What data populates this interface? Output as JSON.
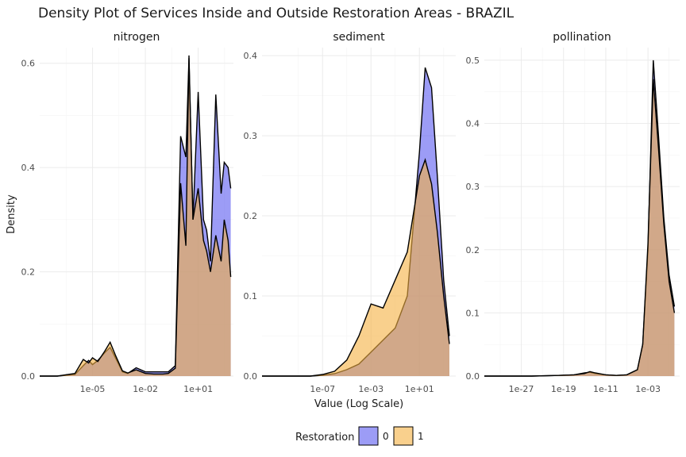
{
  "chart_data": {
    "type": "area",
    "title": "Density Plot of Services Inside and Outside Restoration Areas - BRAZIL",
    "xlabel": "Value (Log Scale)",
    "ylabel": "Density",
    "x_scale": "log10",
    "legend": {
      "title": "Restoration",
      "position": "bottom",
      "items": [
        {
          "label": "0",
          "color": "#5a5af0"
        },
        {
          "label": "1",
          "color": "#f5b041"
        }
      ]
    },
    "series_colors": {
      "0": "#5a5af0",
      "1": "#f5b041",
      "outline": "#000000"
    },
    "panels": [
      {
        "name": "nitrogen",
        "xlim": [
          "1e-08",
          "1e+03"
        ],
        "ylim": [
          0,
          0.63
        ],
        "x_ticks": [
          "1e-05",
          "1e-02",
          "1e+01"
        ],
        "y_ticks": [
          "0.0",
          "0.2",
          "0.4",
          "0.6"
        ],
        "series": [
          {
            "name": "0",
            "x": [
              "1e-08",
              "1e-07",
              "1e-06",
              "3e-06",
              "6e-06",
              "1e-05",
              "2e-05",
              "5e-05",
              "1e-04",
              "2e-04",
              "5e-04",
              "1e-03",
              "3e-03",
              "1e-02",
              "3e-02",
              "1e-01",
              "2e-01",
              "5e-01",
              "1e+00",
              "2e+00",
              "3e+00",
              "5e+00",
              "1e+01",
              "2e+01",
              "3e+01",
              "5e+01",
              "1e+02",
              "2e+02",
              "3e+02",
              "5e+02",
              "7e+02"
            ],
            "y": [
              0,
              0,
              0.003,
              0.02,
              0.03,
              0.022,
              0.03,
              0.045,
              0.055,
              0.035,
              0.008,
              0.005,
              0.016,
              0.008,
              0.008,
              0.008,
              0.008,
              0.02,
              0.46,
              0.42,
              0.61,
              0.3,
              0.545,
              0.3,
              0.28,
              0.22,
              0.54,
              0.35,
              0.41,
              0.4,
              0.36
            ]
          },
          {
            "name": "1",
            "x": [
              "1e-08",
              "1e-07",
              "1e-06",
              "3e-06",
              "6e-06",
              "1e-05",
              "2e-05",
              "5e-05",
              "1e-04",
              "2e-04",
              "5e-04",
              "1e-03",
              "3e-03",
              "1e-02",
              "3e-02",
              "1e-01",
              "2e-01",
              "5e-01",
              "1e+00",
              "2e+00",
              "3e+00",
              "5e+00",
              "1e+01",
              "2e+01",
              "3e+01",
              "5e+01",
              "1e+02",
              "2e+02",
              "3e+02",
              "5e+02",
              "7e+02"
            ],
            "y": [
              0,
              0,
              0.005,
              0.032,
              0.025,
              0.035,
              0.028,
              0.048,
              0.065,
              0.04,
              0.01,
              0.006,
              0.012,
              0.005,
              0.004,
              0.004,
              0.005,
              0.015,
              0.37,
              0.25,
              0.615,
              0.3,
              0.36,
              0.26,
              0.24,
              0.2,
              0.27,
              0.22,
              0.3,
              0.26,
              0.19
            ]
          }
        ]
      },
      {
        "name": "sediment",
        "xlim": [
          "1e-12",
          "1e+04"
        ],
        "ylim": [
          0,
          0.41
        ],
        "x_ticks": [
          "1e-07",
          "1e-03",
          "1e+01"
        ],
        "y_ticks": [
          "0.0",
          "0.1",
          "0.2",
          "0.3",
          "0.4"
        ],
        "series": [
          {
            "name": "0",
            "x": [
              "1e-12",
              "1e-10",
              "1e-08",
              "1e-07",
              "1e-06",
              "1e-05",
              "1e-04",
              "1e-03",
              "1e-02",
              "1e-01",
              "1e+00",
              "1e+01",
              "3e+01",
              "1e+02",
              "3e+02",
              "1e+03",
              "3e+03"
            ],
            "y": [
              0,
              0,
              0,
              0.001,
              0.003,
              0.008,
              0.015,
              0.03,
              0.045,
              0.06,
              0.1,
              0.28,
              0.385,
              0.36,
              0.25,
              0.12,
              0.05
            ]
          },
          {
            "name": "1",
            "x": [
              "1e-12",
              "1e-10",
              "1e-08",
              "1e-07",
              "1e-06",
              "1e-05",
              "1e-04",
              "1e-03",
              "1e-02",
              "1e-01",
              "1e+00",
              "1e+01",
              "3e+01",
              "1e+02",
              "3e+02",
              "1e+03",
              "3e+03"
            ],
            "y": [
              0,
              0,
              0,
              0.002,
              0.006,
              0.02,
              0.05,
              0.09,
              0.085,
              0.12,
              0.155,
              0.25,
              0.27,
              0.24,
              0.18,
              0.1,
              0.04
            ]
          }
        ]
      },
      {
        "name": "pollination",
        "xlim": [
          "1e-34",
          "1e+03"
        ],
        "ylim": [
          0,
          0.52
        ],
        "x_ticks": [
          "1e-27",
          "1e-19",
          "1e-11",
          "1e-03"
        ],
        "y_ticks": [
          "0.0",
          "0.1",
          "0.2",
          "0.3",
          "0.4",
          "0.5"
        ],
        "series": [
          {
            "name": "0",
            "x": [
              "1e-34",
              "1e-30",
              "1e-25",
              "1e-20",
              "1e-17",
              "1e-15",
              "1e-14",
              "1e-13",
              "1e-11",
              "1e-09",
              "1e-07",
              "1e-05",
              "1e-04",
              "1e-03",
              "1e-02",
              "1e-01",
              "1e+00",
              "1e+01",
              "1e+02"
            ],
            "y": [
              0,
              0,
              0,
              0.001,
              0.002,
              0.005,
              0.006,
              0.004,
              0.002,
              0.001,
              0.002,
              0.01,
              0.05,
              0.2,
              0.5,
              0.38,
              0.25,
              0.16,
              0.11
            ]
          },
          {
            "name": "1",
            "x": [
              "1e-34",
              "1e-30",
              "1e-25",
              "1e-20",
              "1e-17",
              "1e-15",
              "1e-14",
              "1e-13",
              "1e-11",
              "1e-09",
              "1e-07",
              "1e-05",
              "1e-04",
              "1e-03",
              "1e-02",
              "1e-01",
              "1e+00",
              "1e+01",
              "1e+02"
            ],
            "y": [
              0,
              0,
              0,
              0.001,
              0.002,
              0.004,
              0.007,
              0.005,
              0.002,
              0.001,
              0.002,
              0.01,
              0.05,
              0.21,
              0.47,
              0.36,
              0.24,
              0.15,
              0.1
            ]
          }
        ]
      }
    ]
  }
}
